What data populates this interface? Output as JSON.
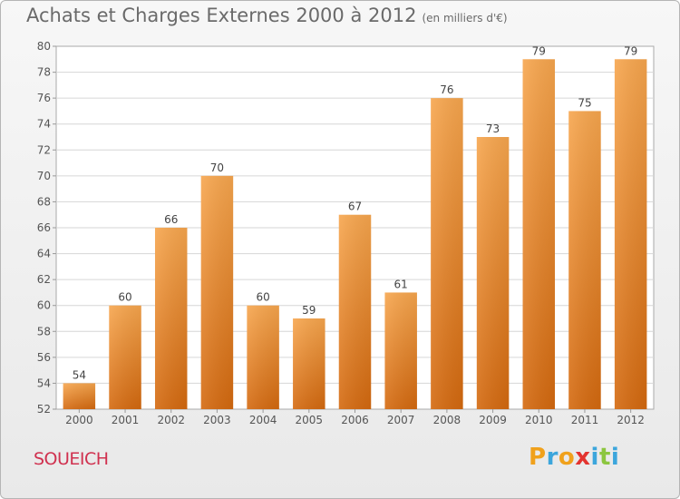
{
  "header": {
    "title": "Achats et Charges Externes 2000 à 2012",
    "unit": "(en milliers d'€)"
  },
  "footer": {
    "commune": "SOUEICH",
    "brand_letters": [
      "P",
      "r",
      "o",
      "x",
      "i",
      "t",
      "i"
    ],
    "brand_colors": [
      "#f0a11c",
      "#3ca6dc",
      "#f0a11c",
      "#e3342f",
      "#3ca6dc",
      "#8cc63f",
      "#3ca6dc"
    ]
  },
  "chart_data": {
    "type": "bar",
    "title": "Achats et Charges Externes 2000 à 2012",
    "subtitle": "(en milliers d'€)",
    "xlabel": "",
    "ylabel": "",
    "categories": [
      "2000",
      "2001",
      "2002",
      "2003",
      "2004",
      "2005",
      "2006",
      "2007",
      "2008",
      "2009",
      "2010",
      "2011",
      "2012"
    ],
    "values": [
      54,
      60,
      66,
      70,
      60,
      59,
      67,
      61,
      76,
      73,
      79,
      75,
      79
    ],
    "ylim": [
      52,
      80
    ],
    "yticks": [
      52,
      54,
      56,
      58,
      60,
      62,
      64,
      66,
      68,
      70,
      72,
      74,
      76,
      78,
      80
    ],
    "grid": true,
    "bar_color_top": "#f7a64e",
    "bar_color_bottom": "#d4690f"
  }
}
